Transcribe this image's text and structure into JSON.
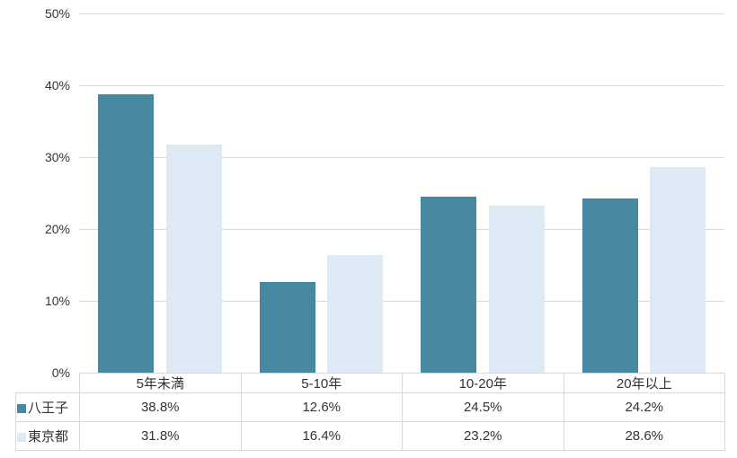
{
  "chart_data": {
    "type": "bar",
    "categories": [
      "5年未満",
      "5-10年",
      "10-20年",
      "20年以上"
    ],
    "series": [
      {
        "name": "八王子",
        "color": "#4789a3",
        "values": [
          38.8,
          12.6,
          24.5,
          24.2
        ],
        "labels": [
          "38.8%",
          "12.6%",
          "24.5%",
          "24.2%"
        ]
      },
      {
        "name": "東京都",
        "color": "#dde9f5",
        "values": [
          31.8,
          16.4,
          23.2,
          28.6
        ],
        "labels": [
          "31.8%",
          "16.4%",
          "23.2%",
          "28.6%"
        ]
      }
    ],
    "title": "",
    "xlabel": "",
    "ylabel": "",
    "ylim": [
      0,
      50
    ],
    "ytick_step": 10,
    "ytick_labels": [
      "0%",
      "10%",
      "20%",
      "30%",
      "40%",
      "50%"
    ],
    "grid": true,
    "legend_position": "data-table-left",
    "colors": {
      "gridline": "#d9d9d9",
      "table_border": "#d9d9d9",
      "text": "#333333",
      "background": "#ffffff"
    }
  }
}
